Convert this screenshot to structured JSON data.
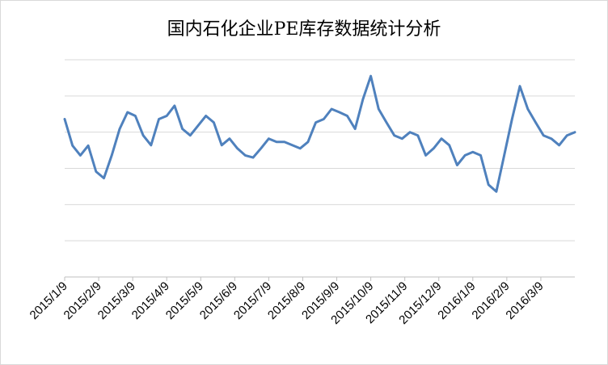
{
  "chart_data": {
    "type": "line",
    "title": "国内石化企业PE库存数据统计分析",
    "xlabel": "",
    "ylabel": "",
    "y_tick_labels_shown": false,
    "ylim": [
      0,
      6
    ],
    "grid": true,
    "legend": "none",
    "x_tick_labels": [
      "2015/1/9",
      "2015/2/9",
      "2015/3/9",
      "2015/4/9",
      "2015/5/9",
      "2015/6/9",
      "2015/7/9",
      "2015/8/9",
      "2015/9/9",
      "2015/10/9",
      "2015/11/9",
      "2015/12/9",
      "2016/1/9",
      "2016/2/9",
      "2016/3/9"
    ],
    "series": [
      {
        "color": "#4f81bd",
        "values": [
          4.36,
          3.63,
          3.36,
          3.63,
          2.91,
          2.73,
          3.36,
          4.09,
          4.55,
          4.45,
          3.91,
          3.64,
          4.36,
          4.45,
          4.73,
          4.09,
          3.91,
          4.18,
          4.45,
          4.27,
          3.64,
          3.82,
          3.55,
          3.36,
          3.3,
          3.55,
          3.82,
          3.73,
          3.73,
          3.64,
          3.55,
          3.73,
          4.27,
          4.36,
          4.64,
          4.55,
          4.45,
          4.09,
          4.91,
          5.55,
          4.64,
          4.27,
          3.91,
          3.82,
          4.0,
          3.91,
          3.36,
          3.55,
          3.82,
          3.64,
          3.09,
          3.36,
          3.45,
          3.36,
          2.55,
          2.36,
          3.36,
          4.36,
          5.27,
          4.64,
          4.27,
          3.91,
          3.82,
          3.64,
          3.91,
          4.0
        ]
      }
    ]
  }
}
